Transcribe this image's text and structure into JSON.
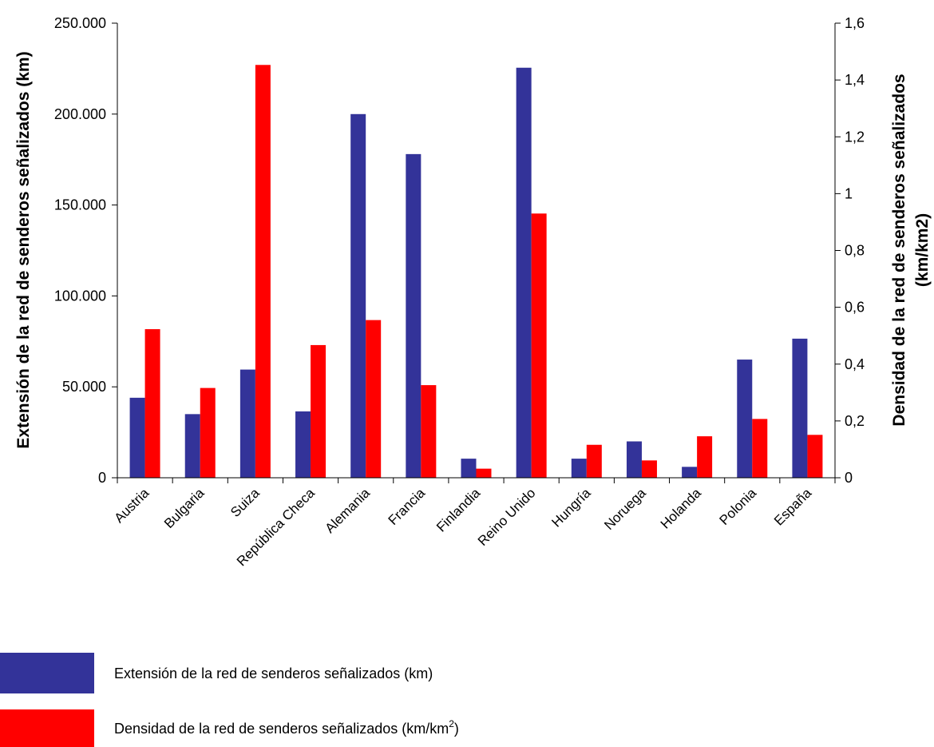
{
  "chart_data": {
    "type": "bar",
    "categories": [
      "Austria",
      "Bulgaria",
      "Suiza",
      "República Checa",
      "Alemania",
      "Francia",
      "Finlandia",
      "Reino Unido",
      "Hungría",
      "Noruega",
      "Holanda",
      "Polonia",
      "España"
    ],
    "series": [
      {
        "name": "Extensión de la red de senderos señalizados (km)",
        "axis": "left",
        "color": "#333399",
        "values": [
          44000,
          35000,
          59500,
          36500,
          200000,
          178000,
          10500,
          225500,
          10500,
          20000,
          6000,
          65000,
          76500
        ]
      },
      {
        "name": "Densidad de la red de senderos señalizados (km/km",
        "name_sup": "2",
        "name_suffix": ")",
        "axis": "right",
        "color": "#ff0000",
        "values": [
          0.523,
          0.316,
          1.453,
          0.467,
          0.555,
          0.326,
          0.032,
          0.93,
          0.116,
          0.061,
          0.146,
          0.207,
          0.151
        ]
      }
    ],
    "left_axis": {
      "title": "Extensión de la red de senderos señalizados (km)",
      "ylim": [
        0,
        250000
      ],
      "ticks": [
        0,
        50000,
        100000,
        150000,
        200000,
        250000
      ],
      "tick_labels": [
        "0",
        "50.000",
        "100.000",
        "150.000",
        "200.000",
        "250.000"
      ]
    },
    "right_axis": {
      "title_line1": "Densidad de la red de senderos señalizados",
      "title_line2": "(km/km2)",
      "ylim": [
        0,
        1.6
      ],
      "ticks": [
        0,
        0.2,
        0.4,
        0.6,
        0.8,
        1,
        1.2,
        1.4,
        1.6
      ],
      "tick_labels": [
        "0",
        "0,2",
        "0,4",
        "0,6",
        "0,8",
        "1",
        "1,2",
        "1,4",
        "1,6"
      ]
    },
    "grid": false,
    "legend_position": "bottom-left"
  }
}
